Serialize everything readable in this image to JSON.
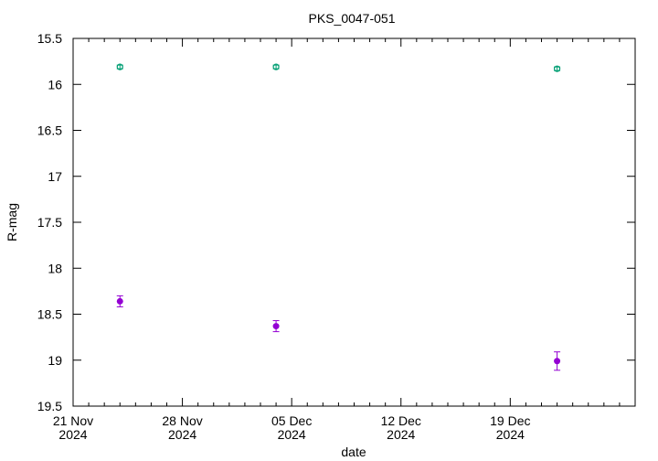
{
  "chart_data": {
    "type": "scatter",
    "title": "PKS_0047-051",
    "xlabel": "date",
    "ylabel": "R-mag",
    "xlim": [
      "2024-11-21",
      "2024-12-27"
    ],
    "ylim": [
      19.5,
      15.5
    ],
    "y_inverted": true,
    "grid": false,
    "x_ticks": [
      {
        "date": "2024-11-21",
        "line1": "21 Nov",
        "line2": "2024"
      },
      {
        "date": "2024-11-28",
        "line1": "28 Nov",
        "line2": "2024"
      },
      {
        "date": "2024-12-05",
        "line1": "05 Dec",
        "line2": "2024"
      },
      {
        "date": "2024-12-12",
        "line1": "12 Dec",
        "line2": "2024"
      },
      {
        "date": "2024-12-19",
        "line1": "19 Dec",
        "line2": "2024"
      }
    ],
    "y_ticks": [
      "15.5",
      "16",
      "16.5",
      "17",
      "17.5",
      "18",
      "18.5",
      "19",
      "19.5"
    ],
    "series": [
      {
        "color": "#9400d3",
        "marker": "filled-circle",
        "points": [
          {
            "x": "2024-11-24",
            "y": 18.36,
            "err": 0.06
          },
          {
            "x": "2024-12-04",
            "y": 18.63,
            "err": 0.06
          },
          {
            "x": "2024-12-22",
            "y": 19.01,
            "err": 0.1
          }
        ]
      },
      {
        "color": "#009e73",
        "marker": "open-circle",
        "points": [
          {
            "x": "2024-11-24",
            "y": 15.81,
            "err": 0.02
          },
          {
            "x": "2024-12-04",
            "y": 15.81,
            "err": 0.02
          },
          {
            "x": "2024-12-22",
            "y": 15.83,
            "err": 0.02
          }
        ]
      }
    ]
  }
}
